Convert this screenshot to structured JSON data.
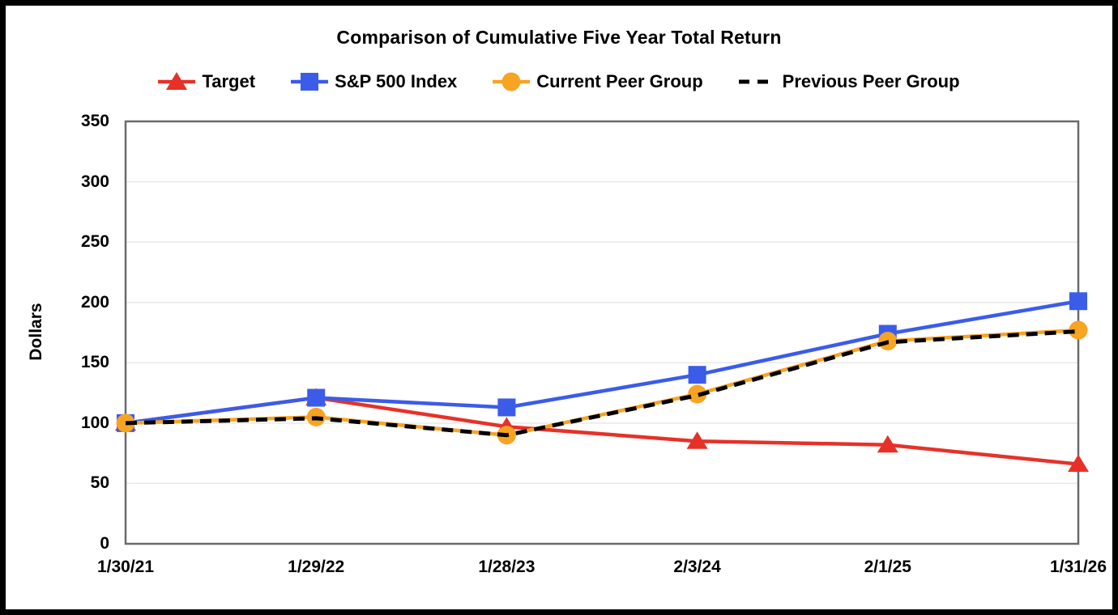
{
  "chart_data": {
    "type": "line",
    "title": "Comparison of Cumulative Five Year Total Return",
    "ylabel": "Dollars",
    "xlabel": "",
    "categories": [
      "1/30/21",
      "1/29/22",
      "1/28/23",
      "2/3/24",
      "2/1/25",
      "1/31/26"
    ],
    "ylim": [
      0,
      350
    ],
    "y_ticks": [
      0,
      50,
      100,
      150,
      200,
      250,
      300,
      350
    ],
    "grid": "horizontal",
    "legend_position": "top",
    "series": [
      {
        "name": "Target",
        "marker": "triangle",
        "line_style": "solid",
        "color": "#E73128",
        "values": [
          100,
          121,
          97,
          85,
          82,
          66
        ]
      },
      {
        "name": "S&P 500 Index",
        "marker": "square",
        "line_style": "solid",
        "color": "#3B5CE9",
        "values": [
          100,
          121,
          113,
          140,
          174,
          201
        ]
      },
      {
        "name": "Current Peer Group",
        "marker": "circle",
        "line_style": "solid",
        "color": "#F7A423",
        "values": [
          100,
          105,
          90,
          124,
          168,
          177
        ]
      },
      {
        "name": "Previous Peer Group",
        "marker": "none",
        "line_style": "dashed",
        "color": "#000000",
        "values": [
          100,
          104,
          90,
          123,
          167,
          176
        ]
      }
    ],
    "colors": {
      "gridline": "#E8E8E8",
      "plot_border": "#6A6A6A",
      "page_border": "#000000",
      "text": "#000000",
      "background": "#FFFFFF"
    }
  }
}
